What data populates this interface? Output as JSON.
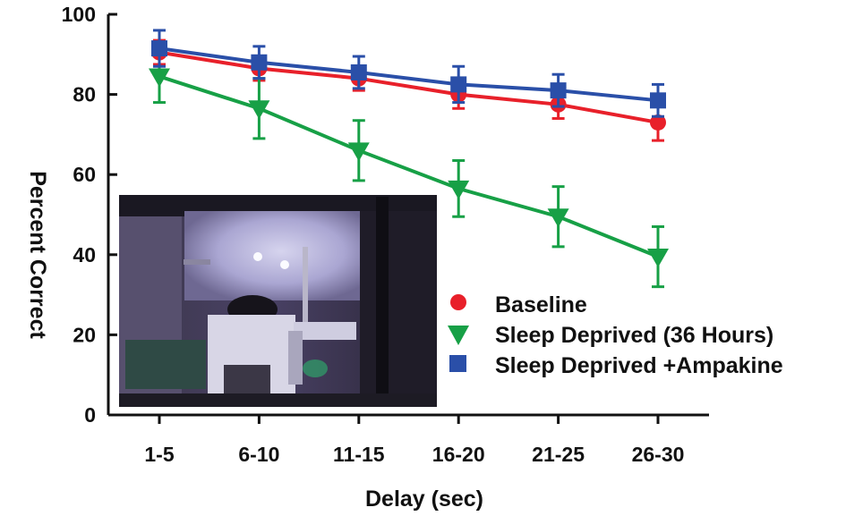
{
  "chart_data": {
    "type": "line",
    "categories": [
      "1-5",
      "6-10",
      "11-15",
      "16-20",
      "21-25",
      "26-30"
    ],
    "xlabel": "Delay (sec)",
    "ylabel": "Percent Correct",
    "ylim": [
      0,
      100
    ],
    "yticks": [
      "0",
      "20",
      "40",
      "60",
      "80",
      "100"
    ],
    "grid": false,
    "legend_position": "bottom-right",
    "series": [
      {
        "name": "Baseline",
        "color": "#e8202a",
        "marker": "circle",
        "values": [
          90.5,
          86.5,
          84,
          80,
          77.5,
          73
        ],
        "errors": [
          3,
          3,
          3,
          3.5,
          3.5,
          4.5
        ]
      },
      {
        "name": "Sleep Deprived (36 Hours)",
        "color": "#17a046",
        "marker": "triangle-down",
        "values": [
          84.5,
          76.5,
          66,
          56.5,
          49.5,
          39.5
        ],
        "errors": [
          6.5,
          7.5,
          7.5,
          7,
          7.5,
          7.5
        ]
      },
      {
        "name": "Sleep Deprived +Ampakine",
        "color": "#2a4fa8",
        "marker": "square",
        "values": [
          91.5,
          88,
          85.5,
          82.5,
          81,
          78.5
        ],
        "errors": [
          4.5,
          4,
          4,
          4.5,
          4,
          4
        ]
      }
    ],
    "inset_photo": "lab-apparatus-photo"
  }
}
